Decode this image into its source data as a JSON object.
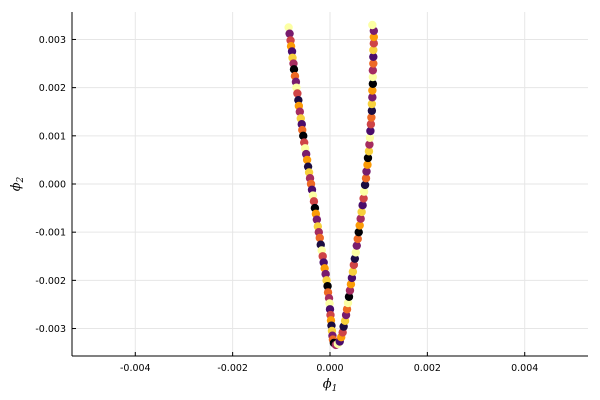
{
  "chart_data": {
    "type": "scatter",
    "xlabel": {
      "symbol": "ϕ",
      "subscript": "1"
    },
    "ylabel": {
      "symbol": "ϕ",
      "subscript": "2"
    },
    "xlim": [
      -0.0053,
      0.0053
    ],
    "ylim": [
      -0.00357,
      0.00357
    ],
    "xticks": [
      -0.004,
      -0.002,
      0.0,
      0.002,
      0.004
    ],
    "xtick_labels": [
      "-0.004",
      "-0.002",
      "0.000",
      "0.002",
      "0.004"
    ],
    "yticks": [
      -0.003,
      -0.002,
      -0.001,
      0.0,
      0.001,
      0.002,
      0.003
    ],
    "ytick_labels": [
      "-0.003",
      "-0.002",
      "-0.001",
      "0.000",
      "0.001",
      "0.002",
      "0.003"
    ],
    "grid": true,
    "legend": "none",
    "colormap": "inferno",
    "palette": [
      "#000004",
      "#1b0c41",
      "#4a0c6b",
      "#781c6d",
      "#a52c60",
      "#cf4446",
      "#ed6925",
      "#fb9b06",
      "#f7d13d",
      "#fcffa4"
    ],
    "series": [
      {
        "marker": "circle",
        "points": [
          [
            -0.00085,
            0.00325,
            9
          ],
          [
            -0.00083,
            0.00312,
            3
          ],
          [
            -0.00081,
            0.00298,
            5
          ],
          [
            -0.0008,
            0.00286,
            7
          ],
          [
            -0.00078,
            0.00275,
            2
          ],
          [
            -0.00077,
            0.00262,
            8
          ],
          [
            -0.00075,
            0.0025,
            4
          ],
          [
            -0.00074,
            0.00238,
            0
          ],
          [
            -0.00072,
            0.00224,
            6
          ],
          [
            -0.0007,
            0.00212,
            3
          ],
          [
            -0.00069,
            0.002,
            9
          ],
          [
            -0.00067,
            0.00188,
            5
          ],
          [
            -0.00065,
            0.00174,
            1
          ],
          [
            -0.00064,
            0.00162,
            7
          ],
          [
            -0.00062,
            0.0015,
            4
          ],
          [
            -0.0006,
            0.00136,
            8
          ],
          [
            -0.00058,
            0.00124,
            2
          ],
          [
            -0.00057,
            0.00112,
            6
          ],
          [
            -0.00055,
            0.001,
            0
          ],
          [
            -0.00053,
            0.00086,
            5
          ],
          [
            -0.00051,
            0.00074,
            9
          ],
          [
            -0.00049,
            0.00062,
            3
          ],
          [
            -0.00047,
            0.0005,
            7
          ],
          [
            -0.00045,
            0.00036,
            1
          ],
          [
            -0.00043,
            0.00024,
            8
          ],
          [
            -0.00041,
            0.00012,
            4
          ],
          [
            -0.00039,
            0.0,
            6
          ],
          [
            -0.00037,
            -0.00012,
            2
          ],
          [
            -0.00035,
            -0.00024,
            9
          ],
          [
            -0.00033,
            -0.00036,
            5
          ],
          [
            -0.00031,
            -0.0005,
            0
          ],
          [
            -0.00029,
            -0.00062,
            7
          ],
          [
            -0.00027,
            -0.00074,
            3
          ],
          [
            -0.00025,
            -0.00088,
            8
          ],
          [
            -0.00023,
            -0.001,
            4
          ],
          [
            -0.00021,
            -0.00112,
            6
          ],
          [
            -0.00019,
            -0.00126,
            1
          ],
          [
            -0.00017,
            -0.00138,
            9
          ],
          [
            -0.00015,
            -0.0015,
            5
          ],
          [
            -0.00013,
            -0.00163,
            2
          ],
          [
            -0.00011,
            -0.00175,
            7
          ],
          [
            -9e-05,
            -0.00187,
            3
          ],
          [
            -7e-05,
            -0.002,
            8
          ],
          [
            -5e-05,
            -0.00212,
            0
          ],
          [
            -4e-05,
            -0.00225,
            6
          ],
          [
            -2e-05,
            -0.00237,
            4
          ],
          [
            -1e-05,
            -0.00248,
            9
          ],
          [
            0.0,
            -0.0026,
            2
          ],
          [
            1e-05,
            -0.00272,
            5
          ],
          [
            2e-05,
            -0.00283,
            7
          ],
          [
            3e-05,
            -0.00294,
            1
          ],
          [
            4e-05,
            -0.00305,
            8
          ],
          [
            5e-05,
            -0.00315,
            3
          ],
          [
            6e-05,
            -0.00323,
            6
          ],
          [
            8e-05,
            -0.0033,
            0
          ],
          [
            0.00012,
            -0.00334,
            4
          ],
          [
            0.00016,
            -0.00332,
            9
          ],
          [
            0.0002,
            -0.00327,
            2
          ],
          [
            0.00023,
            -0.00318,
            7
          ],
          [
            0.00026,
            -0.00308,
            5
          ],
          [
            0.00028,
            -0.00296,
            1
          ],
          [
            0.00031,
            -0.00284,
            8
          ],
          [
            0.00033,
            -0.00272,
            3
          ],
          [
            0.00035,
            -0.0026,
            6
          ],
          [
            0.00037,
            -0.00247,
            9
          ],
          [
            0.00039,
            -0.00234,
            0
          ],
          [
            0.00041,
            -0.00221,
            4
          ],
          [
            0.00043,
            -0.00208,
            7
          ],
          [
            0.00045,
            -0.00195,
            2
          ],
          [
            0.00047,
            -0.00182,
            8
          ],
          [
            0.00049,
            -0.00168,
            5
          ],
          [
            0.00051,
            -0.00155,
            1
          ],
          [
            0.00053,
            -0.00142,
            9
          ],
          [
            0.00055,
            -0.00128,
            3
          ],
          [
            0.00057,
            -0.00114,
            6
          ],
          [
            0.00059,
            -0.001,
            0
          ],
          [
            0.00061,
            -0.00086,
            7
          ],
          [
            0.00063,
            -0.00072,
            4
          ],
          [
            0.00065,
            -0.00058,
            8
          ],
          [
            0.00067,
            -0.00044,
            2
          ],
          [
            0.00069,
            -0.0003,
            5
          ],
          [
            0.0007,
            -0.00016,
            9
          ],
          [
            0.00072,
            -2e-05,
            1
          ],
          [
            0.00074,
            0.00012,
            6
          ],
          [
            0.00075,
            0.00026,
            3
          ],
          [
            0.00077,
            0.0004,
            7
          ],
          [
            0.00078,
            0.00054,
            0
          ],
          [
            0.0008,
            0.00068,
            8
          ],
          [
            0.00081,
            0.00082,
            4
          ],
          [
            0.00082,
            0.00096,
            9
          ],
          [
            0.00083,
            0.0011,
            2
          ],
          [
            0.00084,
            0.00124,
            5
          ],
          [
            0.00085,
            0.00138,
            6
          ],
          [
            0.00086,
            0.00152,
            1
          ],
          [
            0.00086,
            0.00166,
            8
          ],
          [
            0.00087,
            0.0018,
            3
          ],
          [
            0.00087,
            0.00194,
            7
          ],
          [
            0.00088,
            0.00208,
            0
          ],
          [
            0.00088,
            0.00222,
            9
          ],
          [
            0.00088,
            0.00236,
            4
          ],
          [
            0.00089,
            0.0025,
            6
          ],
          [
            0.00089,
            0.00264,
            2
          ],
          [
            0.00089,
            0.00278,
            8
          ],
          [
            0.0009,
            0.00292,
            5
          ],
          [
            0.0009,
            0.00305,
            7
          ],
          [
            0.0009,
            0.00318,
            3
          ],
          [
            0.00087,
            0.0033,
            9
          ]
        ]
      }
    ]
  }
}
